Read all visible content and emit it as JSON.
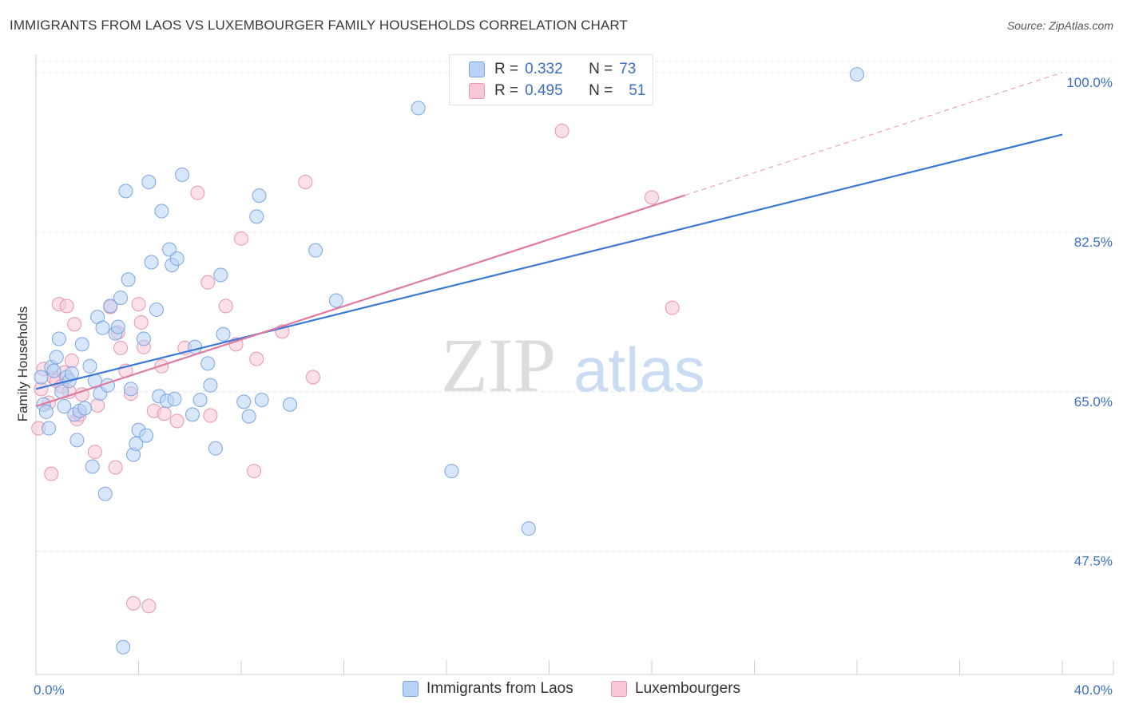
{
  "title": "IMMIGRANTS FROM LAOS VS LUXEMBOURGER FAMILY HOUSEHOLDS CORRELATION CHART",
  "source": "Source: ZipAtlas.com",
  "watermark": {
    "zip": "ZIP",
    "atlas": "atlas"
  },
  "legend": {
    "r_label": "R =",
    "n_label": "N =",
    "series": [
      {
        "name": "Immigrants from Laos",
        "r": "0.332",
        "n": "73",
        "fill": "#b8d2f5",
        "stroke": "#7aa6e0"
      },
      {
        "name": "Luxembourgers",
        "r": "0.495",
        "n": "51",
        "fill": "#f8c6d6",
        "stroke": "#e895b2"
      }
    ]
  },
  "chart_data": {
    "type": "scatter",
    "ylabel": "Family Households",
    "xlabel": "",
    "xlim": [
      0,
      40
    ],
    "ylim": [
      34,
      102
    ],
    "x_tick_labels": [
      {
        "value": 0,
        "label": "0.0%"
      },
      {
        "value": 40,
        "label": "40.0%"
      }
    ],
    "y_tick_labels": [
      {
        "value": 47.5,
        "label": "47.5%"
      },
      {
        "value": 65.0,
        "label": "65.0%"
      },
      {
        "value": 82.5,
        "label": "82.5%"
      },
      {
        "value": 100.0,
        "label": "100.0%"
      }
    ],
    "grid": true,
    "colors": {
      "laos": "#3a78d8",
      "lux": "#e07aa0",
      "tick_label": "#3a6fc4"
    },
    "series": [
      {
        "name": "Immigrants from Laos",
        "color": "#3a78d8",
        "trend": {
          "x": [
            0,
            40
          ],
          "y": [
            65.3,
            93.2
          ],
          "dashed_from": null
        },
        "points": [
          [
            0.2,
            66.6
          ],
          [
            0.3,
            63.6
          ],
          [
            0.4,
            62.8
          ],
          [
            0.5,
            61.0
          ],
          [
            0.6,
            67.7
          ],
          [
            0.7,
            67.3
          ],
          [
            0.8,
            68.8
          ],
          [
            0.9,
            70.8
          ],
          [
            1.0,
            65.0
          ],
          [
            1.1,
            63.4
          ],
          [
            1.2,
            66.6
          ],
          [
            1.3,
            66.2
          ],
          [
            1.4,
            67.0
          ],
          [
            1.5,
            62.5
          ],
          [
            1.6,
            59.7
          ],
          [
            1.7,
            62.9
          ],
          [
            1.8,
            70.2
          ],
          [
            1.9,
            63.2
          ],
          [
            2.1,
            67.8
          ],
          [
            2.2,
            56.8
          ],
          [
            2.3,
            66.2
          ],
          [
            2.4,
            73.2
          ],
          [
            2.5,
            64.8
          ],
          [
            2.6,
            72.0
          ],
          [
            2.7,
            53.8
          ],
          [
            2.8,
            65.7
          ],
          [
            2.9,
            74.4
          ],
          [
            3.1,
            71.4
          ],
          [
            3.2,
            72.1
          ],
          [
            3.3,
            75.3
          ],
          [
            3.4,
            37.0
          ],
          [
            3.5,
            87.0
          ],
          [
            3.6,
            77.3
          ],
          [
            3.7,
            65.3
          ],
          [
            3.8,
            58.1
          ],
          [
            3.9,
            59.3
          ],
          [
            4.0,
            60.8
          ],
          [
            4.2,
            70.8
          ],
          [
            4.3,
            60.2
          ],
          [
            4.4,
            88.0
          ],
          [
            4.5,
            79.2
          ],
          [
            4.7,
            74.0
          ],
          [
            4.8,
            64.5
          ],
          [
            4.9,
            84.8
          ],
          [
            5.1,
            64.0
          ],
          [
            5.2,
            80.6
          ],
          [
            5.3,
            78.9
          ],
          [
            5.4,
            64.2
          ],
          [
            5.5,
            79.6
          ],
          [
            5.7,
            88.8
          ],
          [
            6.1,
            62.5
          ],
          [
            6.2,
            69.9
          ],
          [
            6.4,
            64.1
          ],
          [
            6.7,
            68.1
          ],
          [
            6.8,
            65.7
          ],
          [
            7.0,
            58.8
          ],
          [
            7.2,
            77.8
          ],
          [
            7.3,
            71.3
          ],
          [
            8.1,
            63.9
          ],
          [
            8.3,
            62.3
          ],
          [
            8.6,
            84.2
          ],
          [
            8.7,
            86.5
          ],
          [
            8.8,
            64.1
          ],
          [
            9.9,
            63.6
          ],
          [
            10.9,
            80.5
          ],
          [
            11.7,
            75.0
          ],
          [
            14.9,
            96.1
          ],
          [
            16.2,
            56.3
          ],
          [
            19.2,
            50.0
          ],
          [
            32.0,
            99.8
          ]
        ]
      },
      {
        "name": "Luxembourgers",
        "color": "#e07aa0",
        "trend": {
          "x": [
            0,
            40
          ],
          "y": [
            63.4,
            100.0
          ],
          "dashed_from": 25.3
        },
        "points": [
          [
            0.1,
            61.0
          ],
          [
            0.2,
            65.3
          ],
          [
            0.3,
            67.5
          ],
          [
            0.5,
            63.8
          ],
          [
            0.6,
            56.0
          ],
          [
            0.7,
            66.5
          ],
          [
            0.8,
            66.2
          ],
          [
            0.9,
            74.6
          ],
          [
            1.0,
            65.6
          ],
          [
            1.1,
            67.1
          ],
          [
            1.2,
            74.4
          ],
          [
            1.3,
            65.0
          ],
          [
            1.4,
            68.4
          ],
          [
            1.5,
            72.4
          ],
          [
            1.6,
            62.0
          ],
          [
            1.7,
            62.5
          ],
          [
            1.8,
            64.7
          ],
          [
            2.3,
            58.4
          ],
          [
            2.4,
            63.5
          ],
          [
            2.9,
            74.3
          ],
          [
            3.1,
            56.7
          ],
          [
            3.2,
            71.5
          ],
          [
            3.3,
            69.8
          ],
          [
            3.5,
            67.3
          ],
          [
            3.7,
            64.8
          ],
          [
            3.8,
            41.8
          ],
          [
            4.0,
            74.6
          ],
          [
            4.1,
            72.6
          ],
          [
            4.2,
            69.9
          ],
          [
            4.4,
            41.5
          ],
          [
            4.6,
            62.9
          ],
          [
            4.9,
            67.8
          ],
          [
            5.0,
            62.6
          ],
          [
            5.5,
            61.8
          ],
          [
            5.8,
            69.8
          ],
          [
            6.3,
            86.8
          ],
          [
            6.7,
            77.0
          ],
          [
            6.8,
            62.4
          ],
          [
            7.4,
            74.4
          ],
          [
            7.8,
            70.2
          ],
          [
            8.0,
            81.8
          ],
          [
            8.5,
            56.3
          ],
          [
            8.6,
            68.6
          ],
          [
            9.6,
            71.6
          ],
          [
            10.5,
            88.0
          ],
          [
            10.8,
            66.6
          ],
          [
            20.5,
            93.6
          ],
          [
            24.0,
            86.3
          ],
          [
            24.8,
            74.2
          ]
        ]
      }
    ]
  }
}
